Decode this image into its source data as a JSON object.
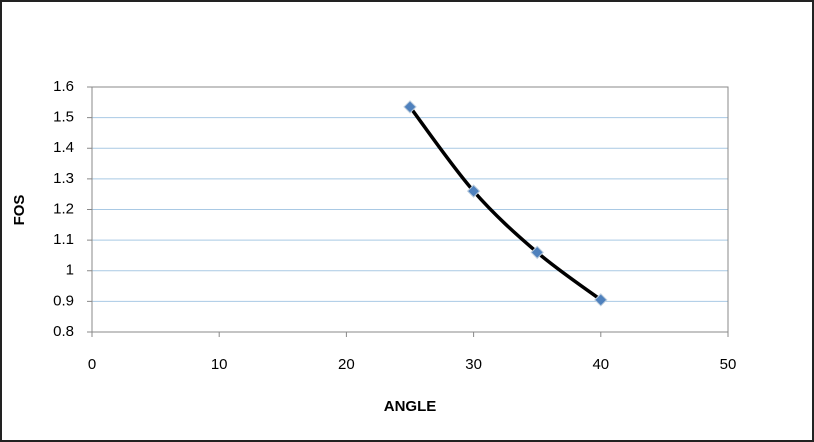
{
  "chart_data": {
    "type": "scatter-line",
    "x_label": "ANGLE",
    "y_label": "FOS",
    "series": [
      {
        "color": "#000000",
        "marker_color": "#4f81bd",
        "x": [
          25,
          30,
          35,
          40
        ],
        "values": [
          1.535,
          1.26,
          1.06,
          0.905
        ]
      }
    ],
    "xlim": [
      0,
      50
    ],
    "xticks": [
      0,
      10,
      20,
      30,
      40,
      50
    ],
    "ylim": [
      0.8,
      1.6
    ],
    "yticks": [
      0.8,
      0.9,
      1,
      1.1,
      1.2,
      1.3,
      1.4,
      1.5,
      1.6
    ],
    "grid": true
  }
}
